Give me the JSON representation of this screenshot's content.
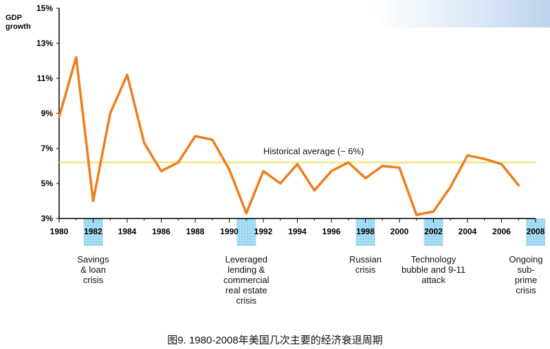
{
  "chart_data": {
    "type": "line",
    "ylabel": "GDP\ngrowth",
    "ylim": [
      3,
      15
    ],
    "xlim": [
      1980,
      2008
    ],
    "y_ticks": [
      "3%",
      "5%",
      "7%",
      "9%",
      "11%",
      "13%",
      "15%"
    ],
    "y_tick_values": [
      3,
      5,
      7,
      9,
      11,
      13,
      15
    ],
    "x_ticks": [
      "1980",
      "1982",
      "1984",
      "1986",
      "1988",
      "1990",
      "1992",
      "1994",
      "1996",
      "1998",
      "2000",
      "2002",
      "2004",
      "2006",
      "2008"
    ],
    "x_tick_values": [
      1980,
      1982,
      1984,
      1986,
      1988,
      1990,
      1992,
      1994,
      1996,
      1998,
      2000,
      2002,
      2004,
      2006,
      2008
    ],
    "series": [
      {
        "color": "#f07c1a",
        "x": [
          1980,
          1981,
          1982,
          1983,
          1984,
          1985,
          1986,
          1987,
          1988,
          1989,
          1990,
          1991,
          1992,
          1993,
          1994,
          1995,
          1996,
          1997,
          1998,
          1999,
          2000,
          2001,
          2002,
          2003,
          2004,
          2005,
          2006,
          2007
        ],
        "values": [
          8.8,
          12.2,
          4.0,
          9.0,
          11.2,
          7.3,
          5.7,
          6.2,
          7.7,
          7.5,
          5.8,
          3.3,
          5.7,
          5.0,
          6.1,
          4.6,
          5.7,
          6.2,
          5.3,
          6.0,
          5.9,
          3.2,
          3.4,
          4.8,
          6.6,
          6.4,
          6.1,
          4.9
        ]
      }
    ],
    "reference_line": {
      "value": 6.2,
      "label": "Historical average (~ 6%)",
      "color": "#f0e068"
    },
    "crisis_bands": [
      {
        "year": 1982,
        "label": "Savings\n& loan\ncrisis"
      },
      {
        "year": 1991,
        "label": "Leveraged\nlending &\ncommercial\nreal estate\ncrisis"
      },
      {
        "year": 1998,
        "label": "Russian\ncrisis"
      },
      {
        "year": 2002,
        "label": "Technology\nbubble and 9-11\nattack"
      },
      {
        "year": 2008,
        "label": "Ongoing\nsub-prime\ncrisis"
      }
    ],
    "band_color": "#8fd0f0"
  },
  "caption": "图9. 1980-2008年美国几次主要的经济衰退周期"
}
